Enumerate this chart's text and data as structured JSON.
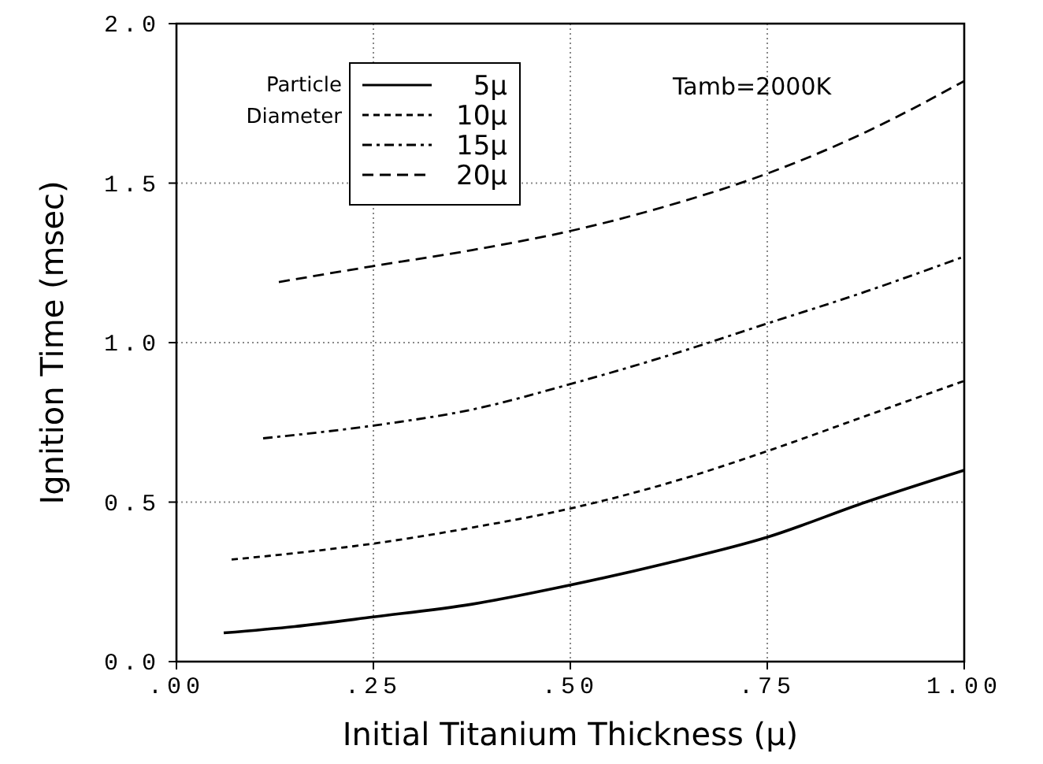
{
  "chart_data": {
    "type": "line",
    "xlabel": "Initial Titanium Thickness (μ)",
    "ylabel": "Ignition Time (msec)",
    "legend_title": "Particle Diameter",
    "legend": "top",
    "grid": true,
    "marker": "none",
    "xlim": [
      0,
      1
    ],
    "ylim": [
      0,
      2
    ],
    "xticks": [
      {
        "value": 0,
        "label": ".00"
      },
      {
        "value": 0.25,
        "label": ".25"
      },
      {
        "value": 0.5,
        "label": ".50"
      },
      {
        "value": 0.75,
        "label": ".75"
      },
      {
        "value": 1,
        "label": "1.00"
      }
    ],
    "yticks": [
      {
        "value": 0,
        "label": "0.0"
      },
      {
        "value": 0.5,
        "label": "0.5"
      },
      {
        "value": 1,
        "label": "1.0"
      },
      {
        "value": 1.5,
        "label": "1.5"
      },
      {
        "value": 2,
        "label": "2.0"
      }
    ],
    "annotations": [
      "Tamb=2000K"
    ],
    "series": [
      {
        "name": "5μ",
        "color": "#000000",
        "line_style": "solid",
        "x": [
          0.06,
          0.15,
          0.25,
          0.375,
          0.5,
          0.625,
          0.75,
          0.875,
          1.0
        ],
        "values": [
          0.09,
          0.11,
          0.14,
          0.18,
          0.24,
          0.31,
          0.39,
          0.5,
          0.6
        ]
      },
      {
        "name": "10μ",
        "color": "#000000",
        "line_style": "dashed",
        "x": [
          0.07,
          0.15,
          0.25,
          0.375,
          0.5,
          0.625,
          0.75,
          0.875,
          1.0
        ],
        "values": [
          0.32,
          0.34,
          0.37,
          0.42,
          0.48,
          0.56,
          0.66,
          0.77,
          0.88
        ]
      },
      {
        "name": "15μ",
        "color": "#000000",
        "line_style": "dashed",
        "x": [
          0.11,
          0.25,
          0.375,
          0.5,
          0.625,
          0.75,
          0.875,
          1.0
        ],
        "values": [
          0.7,
          0.74,
          0.79,
          0.87,
          0.96,
          1.06,
          1.16,
          1.27
        ]
      },
      {
        "name": "20μ",
        "color": "#000000",
        "line_style": "dashed",
        "x": [
          0.13,
          0.25,
          0.375,
          0.5,
          0.625,
          0.75,
          0.875,
          1.0
        ],
        "values": [
          1.19,
          1.24,
          1.29,
          1.35,
          1.43,
          1.53,
          1.66,
          1.82
        ]
      }
    ]
  }
}
